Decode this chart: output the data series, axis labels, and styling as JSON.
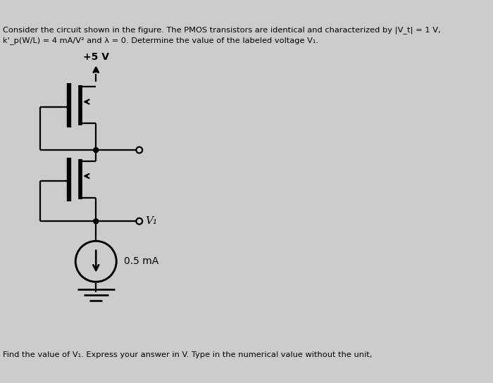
{
  "bg_color": "#cccccc",
  "text_color": "#000000",
  "line_color": "#000000",
  "title_line1": "Consider the circuit shown in the figure. The PMOS transistors are identical and characterized by |V_t| = 1 V,",
  "title_line2": "k'_p(W/L) = 4 mA/V² and λ = 0. Determine the value of the labeled voltage V₁.",
  "bottom_text": "Find the value of V₁. Express your answer in V. Type in the numerical value without the unit,",
  "vdd_label": "+5 V",
  "v1_label": "V₁",
  "current_label": "0.5 mA",
  "lw": 1.6
}
